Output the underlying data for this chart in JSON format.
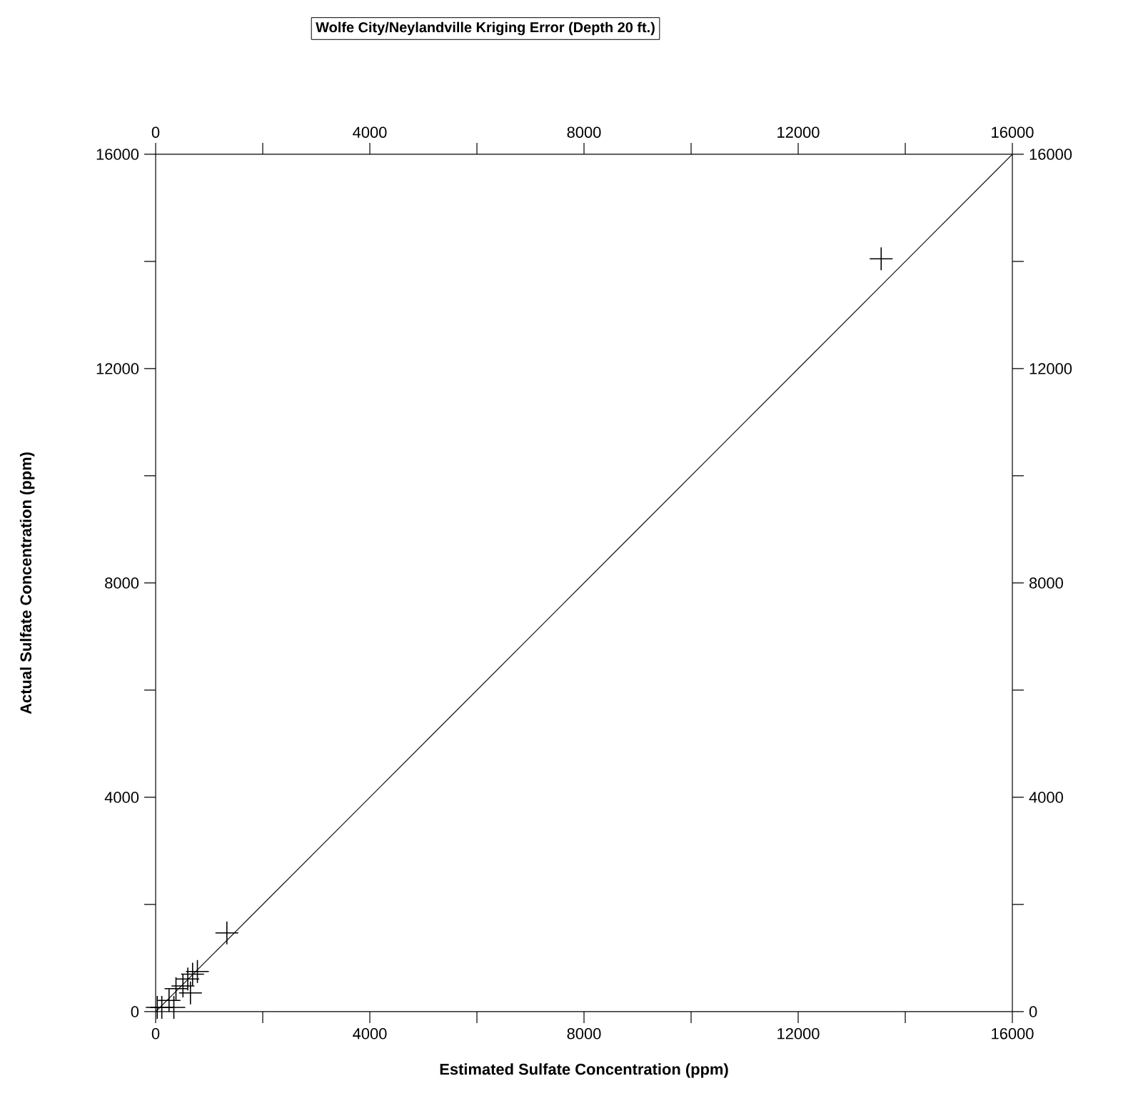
{
  "chart_data": {
    "type": "scatter",
    "title": "Wolfe City/Neylandville Kriging Error (Depth 20 ft.)",
    "xlabel": "Estimated Sulfate Concentration (ppm)",
    "ylabel": "Actual Sulfate Concentration (ppm)",
    "xlim": [
      0,
      16000
    ],
    "ylim": [
      0,
      16000
    ],
    "x2lim": [
      0,
      16000
    ],
    "y2lim": [
      0,
      16000
    ],
    "xticks": [
      0,
      {
        "value": 2000,
        "label": null
      },
      4000,
      {
        "value": 6000,
        "label": null
      },
      8000,
      {
        "value": 10000,
        "label": null
      },
      12000,
      {
        "value": 14000,
        "label": null
      },
      16000
    ],
    "yticks": [
      0,
      {
        "value": 2000,
        "label": null
      },
      4000,
      {
        "value": 6000,
        "label": null
      },
      8000,
      {
        "value": 10000,
        "label": null
      },
      12000,
      {
        "value": 14000,
        "label": null
      },
      16000
    ],
    "x2ticks": [
      0,
      {
        "value": 2000,
        "label": null
      },
      4000,
      {
        "value": 6000,
        "label": null
      },
      8000,
      {
        "value": 10000,
        "label": null
      },
      12000,
      {
        "value": 14000,
        "label": null
      },
      16000
    ],
    "y2ticks": [
      0,
      {
        "value": 2000,
        "label": null
      },
      4000,
      {
        "value": 6000,
        "label": null
      },
      8000,
      {
        "value": 10000,
        "label": null
      },
      12000,
      {
        "value": 14000,
        "label": null
      },
      16000
    ],
    "series": [
      {
        "color": "#000000",
        "marker": "cross",
        "x": [
          13550,
          1330,
          780,
          690,
          600,
          510,
          380,
          650,
          250,
          115,
          340,
          30
        ],
        "values": [
          14050,
          1470,
          750,
          700,
          610,
          480,
          430,
          350,
          210,
          80,
          80,
          80
        ]
      },
      {
        "type": "line",
        "color": "#000000",
        "marker": "none",
        "x": [
          0,
          16000
        ],
        "values": [
          0,
          16000
        ]
      }
    ]
  }
}
